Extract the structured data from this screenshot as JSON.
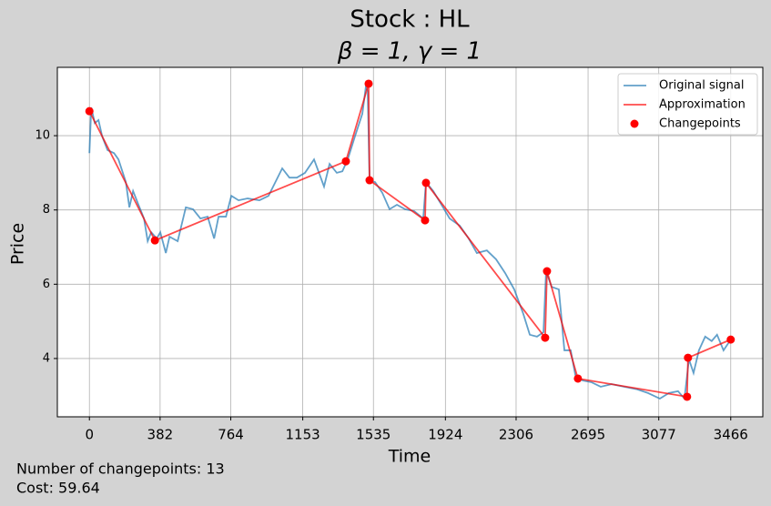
{
  "chart_data": {
    "type": "line",
    "title": "Stock : HL",
    "subtitle": "β = 1, γ = 1",
    "x_label": "Time",
    "y_label": "Price",
    "annotations": [
      "Number of changepoints: 13",
      "Cost: 59.64"
    ],
    "xlim": [
      -173.3,
      3639.3
    ],
    "ylim": [
      2.43,
      11.84
    ],
    "xticks": [
      0,
      382,
      764,
      1153,
      1535,
      1924,
      2306,
      2695,
      3077,
      3466
    ],
    "yticks": [
      4,
      6,
      8,
      10
    ],
    "grid": true,
    "legend": "upper right",
    "series": [
      {
        "name": "Original signal",
        "color": "#1f77b4",
        "alpha": 0.7,
        "style": "line",
        "x": [
          0,
          10,
          29,
          49,
          69,
          98,
          133,
          157,
          197,
          216,
          236,
          265,
          295,
          315,
          334,
          364,
          383,
          413,
          433,
          477,
          521,
          560,
          600,
          639,
          674,
          698,
          738,
          767,
          806,
          855,
          919,
          968,
          993,
          1042,
          1081,
          1121,
          1165,
          1214,
          1268,
          1298,
          1337,
          1367,
          1396,
          1435,
          1475,
          1494,
          1504,
          1514,
          1544,
          1583,
          1622,
          1662,
          1706,
          1755,
          1804,
          1819,
          1858,
          1903,
          1947,
          2001,
          2050,
          2094,
          2148,
          2198,
          2247,
          2296,
          2345,
          2380,
          2419,
          2454,
          2468,
          2498,
          2537,
          2567,
          2601,
          2626,
          2665,
          2714,
          2763,
          2822,
          2891,
          2960,
          3019,
          3083,
          3132,
          3181,
          3216,
          3240,
          3265,
          3294,
          3328,
          3363,
          3392,
          3427,
          3466
        ],
        "values": [
          9.53,
          10.76,
          10.34,
          10.42,
          9.98,
          9.61,
          9.53,
          9.36,
          8.75,
          8.07,
          8.51,
          8.14,
          7.77,
          7.16,
          7.4,
          7.23,
          7.4,
          6.84,
          7.28,
          7.16,
          8.07,
          8.02,
          7.77,
          7.82,
          7.23,
          7.82,
          7.82,
          8.38,
          8.26,
          8.31,
          8.26,
          8.38,
          8.63,
          9.12,
          8.87,
          8.87,
          9.0,
          9.36,
          8.63,
          9.24,
          9.0,
          9.04,
          9.36,
          9.98,
          10.59,
          11.32,
          11.2,
          8.8,
          8.75,
          8.46,
          8.02,
          8.14,
          8.02,
          7.97,
          7.77,
          8.75,
          8.51,
          8.14,
          7.77,
          7.58,
          7.23,
          6.84,
          6.91,
          6.67,
          6.3,
          5.86,
          5.2,
          4.64,
          4.59,
          4.71,
          6.35,
          5.93,
          5.86,
          4.22,
          4.22,
          3.56,
          3.41,
          3.36,
          3.24,
          3.31,
          3.24,
          3.17,
          3.07,
          2.92,
          3.07,
          3.12,
          2.92,
          3.98,
          3.61,
          4.22,
          4.59,
          4.47,
          4.64,
          4.22,
          4.51
        ]
      },
      {
        "name": "Approximation",
        "color": "red",
        "alpha": 0.7,
        "style": "line",
        "x": [
          0,
          354,
          1386,
          1509,
          1514,
          1814,
          1819,
          2463,
          2473,
          2640,
          3230,
          3235,
          3466
        ],
        "values": [
          10.66,
          7.18,
          9.31,
          11.4,
          8.8,
          7.72,
          8.73,
          4.56,
          6.35,
          3.46,
          2.97,
          4.02,
          4.51
        ]
      },
      {
        "name": "Changepoints",
        "color": "red",
        "alpha": 1,
        "style": "markers",
        "x": [
          0,
          354,
          1386,
          1509,
          1514,
          1814,
          1819,
          2463,
          2473,
          2640,
          3230,
          3235,
          3466
        ],
        "values": [
          10.66,
          7.18,
          9.31,
          11.4,
          8.8,
          7.72,
          8.73,
          4.56,
          6.35,
          3.46,
          2.97,
          4.02,
          4.51
        ]
      }
    ]
  }
}
